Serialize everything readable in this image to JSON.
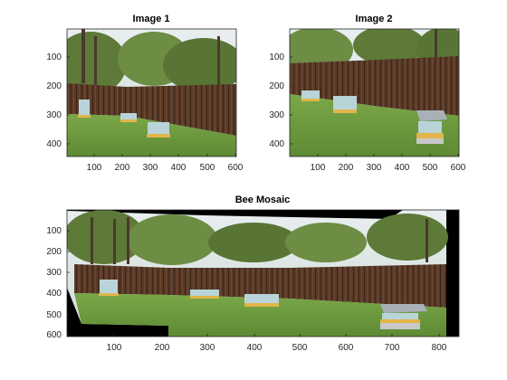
{
  "figure": {
    "panels": [
      {
        "id": "image1",
        "title": "Image 1",
        "xticks": [
          "100",
          "200",
          "300",
          "400",
          "500",
          "600"
        ],
        "yticks": [
          "100",
          "200",
          "300",
          "400"
        ]
      },
      {
        "id": "image2",
        "title": "Image 2",
        "xticks": [
          "100",
          "200",
          "300",
          "400",
          "500",
          "600"
        ],
        "yticks": [
          "100",
          "200",
          "300",
          "400"
        ]
      },
      {
        "id": "mosaic",
        "title": "Bee Mosaic",
        "xticks": [
          "100",
          "200",
          "300",
          "400",
          "500",
          "600",
          "700",
          "800"
        ],
        "yticks": [
          "100",
          "200",
          "300",
          "400",
          "500",
          "600"
        ]
      }
    ],
    "colors": {
      "sky": "#dfe7ea",
      "tree": "#5d7a38",
      "trunk": "#4a3a2c",
      "fence": "#5a3a28",
      "grass": "#6c9a3c",
      "hive_blue": "#b8d4d8",
      "hive_yellow": "#e2b54a",
      "background_black": "#000000"
    }
  }
}
